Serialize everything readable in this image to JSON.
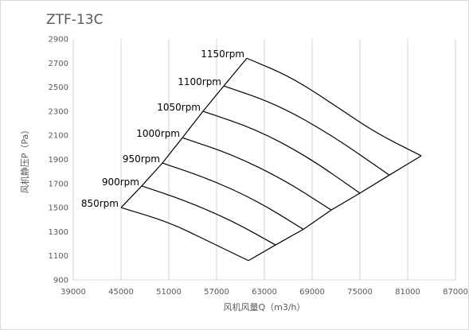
{
  "chart_data": {
    "type": "line",
    "title": "ZTF-13C",
    "xlabel": "风机风量Q（m3/h）",
    "ylabel": "风机静压P（Pa）",
    "xlim": [
      39000,
      87000
    ],
    "ylim": [
      900,
      2900
    ],
    "xticks": [
      39000,
      45000,
      51000,
      57000,
      63000,
      69000,
      75000,
      81000,
      87000
    ],
    "yticks": [
      900,
      1100,
      1300,
      1500,
      1700,
      1900,
      2100,
      2300,
      2500,
      2700,
      2900
    ],
    "grid": "vertical",
    "series": [
      {
        "name": "850rpm",
        "x": [
          45000,
          51000,
          56000,
          61000
        ],
        "y": [
          1500,
          1380,
          1220,
          1060
        ]
      },
      {
        "name": "900rpm",
        "x": [
          47600,
          53000,
          59000,
          64400
        ],
        "y": [
          1680,
          1560,
          1390,
          1190
        ]
      },
      {
        "name": "950rpm",
        "x": [
          50200,
          56000,
          62000,
          67900
        ],
        "y": [
          1870,
          1740,
          1560,
          1320
        ]
      },
      {
        "name": "1000rpm",
        "x": [
          52700,
          59000,
          65500,
          71400
        ],
        "y": [
          2080,
          1940,
          1730,
          1480
        ]
      },
      {
        "name": "1050rpm",
        "x": [
          55300,
          62000,
          68500,
          75000
        ],
        "y": [
          2300,
          2150,
          1920,
          1620
        ]
      },
      {
        "name": "1100rpm",
        "x": [
          57900,
          64500,
          71500,
          78700
        ],
        "y": [
          2510,
          2360,
          2100,
          1770
        ]
      },
      {
        "name": "1150rpm",
        "x": [
          60800,
          66500,
          72500,
          77000,
          82700
        ],
        "y": [
          2740,
          2580,
          2320,
          2120,
          1930
        ]
      }
    ]
  }
}
